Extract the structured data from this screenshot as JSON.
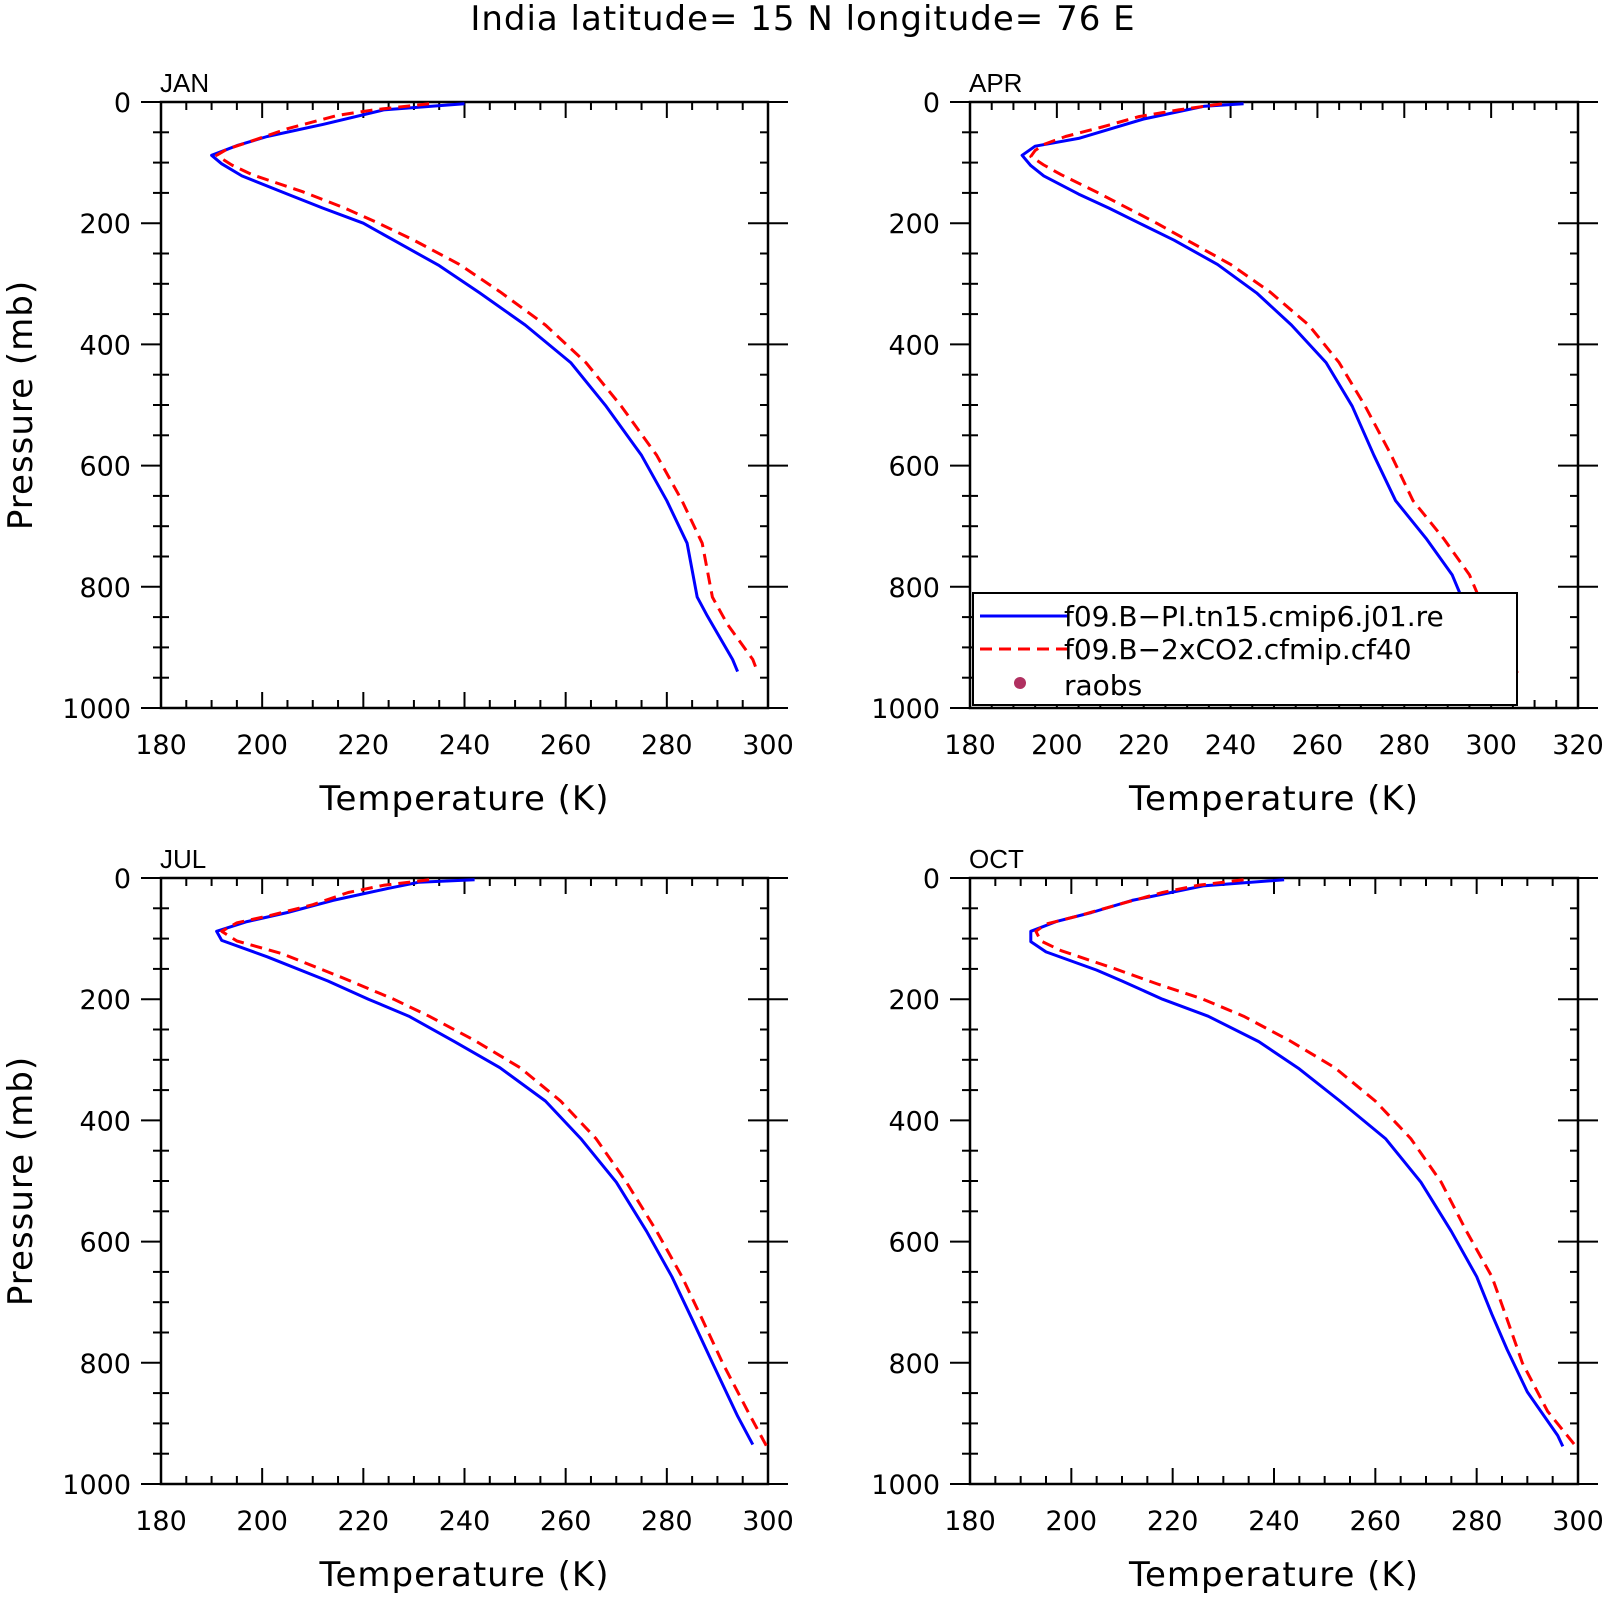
{
  "chart_data": {
    "type": "line",
    "title": "India  latitude= 15 N longitude= 76 E",
    "legend": {
      "placement": "lower-right of APR panel",
      "entries": [
        {
          "label": "f09.B−PI.tn15.cmip6.j01.re",
          "color": "#0000ff",
          "style": "solid"
        },
        {
          "label": "f09.B−2xCO2.cfmip.cf40",
          "color": "#ff0000",
          "style": "dashed"
        },
        {
          "label": "raobs",
          "color": "#b03060",
          "style": "dot"
        }
      ]
    },
    "panels": [
      {
        "label": "JAN",
        "xlabel": "Temperature (K)",
        "ylabel": "Pressure (mb)",
        "xlim": [
          180,
          300
        ],
        "ylim": [
          1000,
          0
        ],
        "xticks": [
          "180",
          "200",
          "220",
          "240",
          "260",
          "280",
          "300"
        ],
        "yticks": [
          "0",
          "200",
          "400",
          "600",
          "800",
          "1000"
        ],
        "series": [
          {
            "name": "f09.B−PI.tn15.cmip6.j01.re",
            "color": "#0000ff",
            "dash": "none",
            "points": [
              [
                240,
                3
              ],
              [
                224,
                13
              ],
              [
                212,
                37
              ],
              [
                201,
                57
              ],
              [
                195,
                72
              ],
              [
                190,
                88
              ],
              [
                192,
                102
              ],
              [
                196,
                122
              ],
              [
                205,
                152
              ],
              [
                212,
                175
              ],
              [
                220,
                200
              ],
              [
                226,
                228
              ],
              [
                235,
                270
              ],
              [
                243,
                315
              ],
              [
                252,
                368
              ],
              [
                261,
                430
              ],
              [
                268,
                502
              ],
              [
                275,
                583
              ],
              [
                280,
                658
              ],
              [
                284,
                728
              ],
              [
                286,
                817
              ],
              [
                288,
                848
              ],
              [
                293,
                920
              ],
              [
                294,
                940
              ]
            ]
          },
          {
            "name": "f09.B−2xCO2.cfmip.cf40",
            "color": "#ff0000",
            "dash": "12,7",
            "points": [
              [
                233,
                3
              ],
              [
                222,
                13
              ],
              [
                215,
                22
              ],
              [
                205,
                44
              ],
              [
                197,
                67
              ],
              [
                193,
                78
              ],
              [
                191,
                88
              ],
              [
                194,
                104
              ],
              [
                198,
                120
              ],
              [
                208,
                148
              ],
              [
                216,
                174
              ],
              [
                223,
                200
              ],
              [
                230,
                228
              ],
              [
                239,
                268
              ],
              [
                247,
                313
              ],
              [
                256,
                368
              ],
              [
                264,
                430
              ],
              [
                271,
                502
              ],
              [
                278,
                583
              ],
              [
                283,
                658
              ],
              [
                287,
                728
              ],
              [
                289,
                817
              ],
              [
                292,
                862
              ],
              [
                297,
                920
              ],
              [
                298,
                942
              ]
            ]
          }
        ]
      },
      {
        "label": "APR",
        "xlabel": "Temperature (K)",
        "ylabel": "",
        "xlim": [
          180,
          320
        ],
        "ylim": [
          1000,
          0
        ],
        "xticks": [
          "180",
          "200",
          "220",
          "240",
          "260",
          "280",
          "300",
          "320"
        ],
        "yticks": [
          "0",
          "200",
          "400",
          "600",
          "800",
          "1000"
        ],
        "series": [
          {
            "name": "f09.B−PI.tn15.cmip6.j01.re",
            "color": "#0000ff",
            "dash": "none",
            "points": [
              [
                243,
                3
              ],
              [
                234,
                7
              ],
              [
                220,
                28
              ],
              [
                205,
                60
              ],
              [
                195,
                73
              ],
              [
                192,
                88
              ],
              [
                194,
                105
              ],
              [
                197,
                122
              ],
              [
                205,
                152
              ],
              [
                212,
                175
              ],
              [
                219,
                200
              ],
              [
                227,
                228
              ],
              [
                237,
                268
              ],
              [
                246,
                315
              ],
              [
                254,
                368
              ],
              [
                262,
                430
              ],
              [
                268,
                502
              ],
              [
                273,
                583
              ],
              [
                278,
                658
              ],
              [
                285,
                720
              ],
              [
                291,
                780
              ],
              [
                295,
                848
              ],
              [
                302,
                940
              ]
            ]
          },
          {
            "name": "f09.B−2xCO2.cfmip.cf40",
            "color": "#ff0000",
            "dash": "12,7",
            "points": [
              [
                238,
                3
              ],
              [
                228,
                13
              ],
              [
                219,
                24
              ],
              [
                210,
                42
              ],
              [
                202,
                57
              ],
              [
                197,
                70
              ],
              [
                195,
                80
              ],
              [
                194,
                90
              ],
              [
                197,
                104
              ],
              [
                201,
                120
              ],
              [
                209,
                148
              ],
              [
                216,
                174
              ],
              [
                223,
                200
              ],
              [
                230,
                228
              ],
              [
                240,
                268
              ],
              [
                249,
                313
              ],
              [
                258,
                368
              ],
              [
                265,
                430
              ],
              [
                271,
                502
              ],
              [
                277,
                583
              ],
              [
                282,
                658
              ],
              [
                289,
                720
              ],
              [
                295,
                780
              ],
              [
                299,
                848
              ],
              [
                305,
                920
              ],
              [
                306,
                942
              ]
            ]
          }
        ]
      },
      {
        "label": "JUL",
        "xlabel": "Temperature (K)",
        "ylabel": "Pressure (mb)",
        "xlim": [
          180,
          300
        ],
        "ylim": [
          1000,
          0
        ],
        "xticks": [
          "180",
          "200",
          "220",
          "240",
          "260",
          "280",
          "300"
        ],
        "yticks": [
          "0",
          "200",
          "400",
          "600",
          "800",
          "1000"
        ],
        "series": [
          {
            "name": "f09.B−PI.tn15.cmip6.j01.re",
            "color": "#0000ff",
            "dash": "none",
            "points": [
              [
                242,
                3
              ],
              [
                231,
                7
              ],
              [
                225,
                17
              ],
              [
                214,
                37
              ],
              [
                205,
                57
              ],
              [
                197,
                72
              ],
              [
                191,
                88
              ],
              [
                192,
                103
              ],
              [
                201,
                130
              ],
              [
                213,
                170
              ],
              [
                221,
                200
              ],
              [
                229,
                228
              ],
              [
                238,
                270
              ],
              [
                247,
                313
              ],
              [
                256,
                368
              ],
              [
                263,
                430
              ],
              [
                270,
                502
              ],
              [
                276,
                583
              ],
              [
                281,
                658
              ],
              [
                285,
                728
              ],
              [
                289,
                800
              ],
              [
                294,
                888
              ],
              [
                297,
                935
              ]
            ]
          },
          {
            "name": "f09.B−2xCO2.cfmip.cf40",
            "color": "#ff0000",
            "dash": "12,7",
            "points": [
              [
                233,
                3
              ],
              [
                224,
                12
              ],
              [
                217,
                24
              ],
              [
                210,
                44
              ],
              [
                202,
                61
              ],
              [
                195,
                74
              ],
              [
                192,
                88
              ],
              [
                195,
                104
              ],
              [
                204,
                125
              ],
              [
                216,
                165
              ],
              [
                226,
                200
              ],
              [
                233,
                228
              ],
              [
                242,
                268
              ],
              [
                251,
                313
              ],
              [
                259,
                368
              ],
              [
                266,
                430
              ],
              [
                272,
                502
              ],
              [
                278,
                583
              ],
              [
                283,
                658
              ],
              [
                287,
                728
              ],
              [
                291,
                800
              ],
              [
                296,
                880
              ],
              [
                300,
                942
              ]
            ]
          }
        ]
      },
      {
        "label": "OCT",
        "xlabel": "Temperature (K)",
        "ylabel": "",
        "xlim": [
          180,
          300
        ],
        "ylim": [
          1000,
          0
        ],
        "xticks": [
          "180",
          "200",
          "220",
          "240",
          "260",
          "280",
          "300"
        ],
        "yticks": [
          "0",
          "200",
          "400",
          "600",
          "800",
          "1000"
        ],
        "series": [
          {
            "name": "f09.B−PI.tn15.cmip6.j01.re",
            "color": "#0000ff",
            "dash": "none",
            "points": [
              [
                242,
                3
              ],
              [
                226,
                13
              ],
              [
                212,
                37
              ],
              [
                204,
                57
              ],
              [
                197,
                72
              ],
              [
                192,
                88
              ],
              [
                192,
                105
              ],
              [
                195,
                122
              ],
              [
                205,
                152
              ],
              [
                210,
                170
              ],
              [
                218,
                200
              ],
              [
                227,
                228
              ],
              [
                237,
                270
              ],
              [
                245,
                315
              ],
              [
                253,
                368
              ],
              [
                262,
                430
              ],
              [
                269,
                502
              ],
              [
                275,
                583
              ],
              [
                280,
                658
              ],
              [
                283,
                720
              ],
              [
                286,
                778
              ],
              [
                290,
                848
              ],
              [
                296,
                920
              ],
              [
                297,
                938
              ]
            ]
          },
          {
            "name": "f09.B−2xCO2.cfmip.cf40",
            "color": "#ff0000",
            "dash": "12,7",
            "points": [
              [
                234,
                3
              ],
              [
                225,
                12
              ],
              [
                218,
                24
              ],
              [
                210,
                42
              ],
              [
                202,
                61
              ],
              [
                195,
                76
              ],
              [
                193,
                88
              ],
              [
                194,
                104
              ],
              [
                198,
                120
              ],
              [
                208,
                148
              ],
              [
                217,
                175
              ],
              [
                226,
                200
              ],
              [
                234,
                228
              ],
              [
                243,
                268
              ],
              [
                252,
                313
              ],
              [
                260,
                368
              ],
              [
                267,
                430
              ],
              [
                273,
                502
              ],
              [
                278,
                583
              ],
              [
                283,
                658
              ],
              [
                286,
                728
              ],
              [
                289,
                800
              ],
              [
                294,
                880
              ],
              [
                300,
                942
              ]
            ]
          }
        ]
      }
    ],
    "raobs": []
  }
}
